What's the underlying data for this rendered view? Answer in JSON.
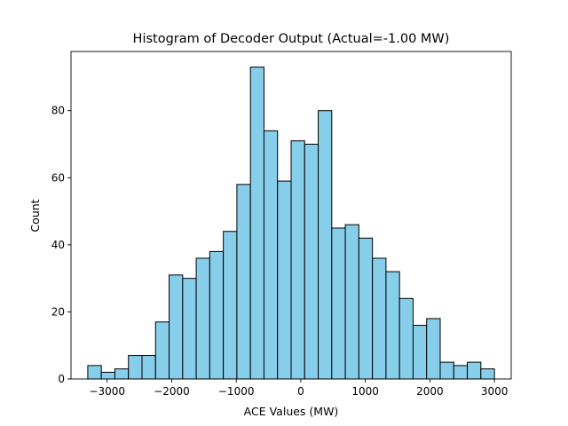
{
  "chart_data": {
    "type": "bar",
    "title": "Histogram of Decoder Output (Actual=-1.00 MW)",
    "xlabel": "ACE Values (MW)",
    "ylabel": "Count",
    "xlim": [
      -3560,
      3260
    ],
    "ylim": [
      0,
      97.65
    ],
    "x_ticks": [
      -3000,
      -2000,
      -1000,
      0,
      1000,
      2000,
      3000
    ],
    "x_tick_labels": [
      "−3000",
      "−2000",
      "−1000",
      "0",
      "1000",
      "2000",
      "3000"
    ],
    "y_ticks": [
      0,
      20,
      40,
      60,
      80
    ],
    "y_tick_labels": [
      "0",
      "20",
      "40",
      "60",
      "80"
    ],
    "bar_color": "#87ceeb",
    "edge_color": "#000000",
    "grid": false,
    "bins": [
      {
        "x0": -3300,
        "x1": -3090,
        "count": 4
      },
      {
        "x0": -3090,
        "x1": -2880,
        "count": 2
      },
      {
        "x0": -2880,
        "x1": -2670,
        "count": 3
      },
      {
        "x0": -2670,
        "x1": -2460,
        "count": 7
      },
      {
        "x0": -2460,
        "x1": -2250,
        "count": 7
      },
      {
        "x0": -2250,
        "x1": -2040,
        "count": 17
      },
      {
        "x0": -2040,
        "x1": -1830,
        "count": 31
      },
      {
        "x0": -1830,
        "x1": -1620,
        "count": 30
      },
      {
        "x0": -1620,
        "x1": -1410,
        "count": 36
      },
      {
        "x0": -1410,
        "x1": -1200,
        "count": 38
      },
      {
        "x0": -1200,
        "x1": -990,
        "count": 44
      },
      {
        "x0": -990,
        "x1": -780,
        "count": 58
      },
      {
        "x0": -780,
        "x1": -570,
        "count": 93
      },
      {
        "x0": -570,
        "x1": -360,
        "count": 74
      },
      {
        "x0": -360,
        "x1": -150,
        "count": 59
      },
      {
        "x0": -150,
        "x1": 60,
        "count": 71
      },
      {
        "x0": 60,
        "x1": 270,
        "count": 70
      },
      {
        "x0": 270,
        "x1": 480,
        "count": 80
      },
      {
        "x0": 480,
        "x1": 690,
        "count": 45
      },
      {
        "x0": 690,
        "x1": 900,
        "count": 46
      },
      {
        "x0": 900,
        "x1": 1110,
        "count": 42
      },
      {
        "x0": 1110,
        "x1": 1320,
        "count": 36
      },
      {
        "x0": 1320,
        "x1": 1530,
        "count": 32
      },
      {
        "x0": 1530,
        "x1": 1740,
        "count": 24
      },
      {
        "x0": 1740,
        "x1": 1950,
        "count": 16
      },
      {
        "x0": 1950,
        "x1": 2160,
        "count": 18
      },
      {
        "x0": 2160,
        "x1": 2370,
        "count": 5
      },
      {
        "x0": 2370,
        "x1": 2580,
        "count": 4
      },
      {
        "x0": 2580,
        "x1": 2790,
        "count": 5
      },
      {
        "x0": 2790,
        "x1": 3000,
        "count": 3
      }
    ]
  }
}
